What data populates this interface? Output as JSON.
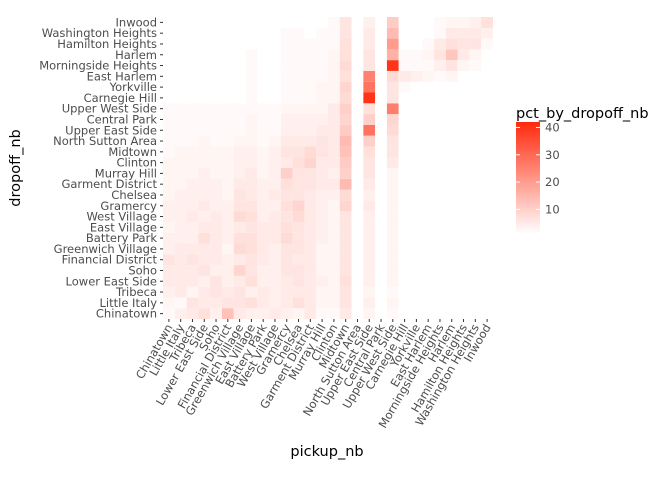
{
  "chart_data": {
    "type": "heatmap",
    "xlabel": "pickup_nb",
    "ylabel": "dropoff_nb",
    "x_categories": [
      "Chinatown",
      "Little Italy",
      "Tribeca",
      "Lower East Side",
      "Soho",
      "Financial District",
      "Greenwich Village",
      "East Village",
      "Battery Park",
      "West Village",
      "Gramercy",
      "Chelsea",
      "Garment District",
      "Murray Hill",
      "Clinton",
      "Midtown",
      "North Sutton Area",
      "Upper East Side",
      "Central Park",
      "Upper West Side",
      "Carnegie Hill",
      "Yorkville",
      "East Harlem",
      "Morningside Heights",
      "Harlem",
      "Hamilton Heights",
      "Washington Heights",
      "Inwood"
    ],
    "y_categories": [
      "Chinatown",
      "Little Italy",
      "Tribeca",
      "Lower East Side",
      "Soho",
      "Financial District",
      "Greenwich Village",
      "Battery Park",
      "East Village",
      "West Village",
      "Gramercy",
      "Chelsea",
      "Garment District",
      "Murray Hill",
      "Clinton",
      "Midtown",
      "North Sutton Area",
      "Upper East Side",
      "Central Park",
      "Upper West Side",
      "Carnegie Hill",
      "Yorkville",
      "East Harlem",
      "Morningside Heights",
      "Harlem",
      "Hamilton Heights",
      "Washington Heights",
      "Inwood"
    ],
    "values": [
      [
        2,
        4,
        5,
        7,
        4,
        13,
        5,
        4,
        4,
        5,
        4,
        3,
        5,
        2,
        2,
        5,
        1,
        3,
        1,
        2,
        1,
        1,
        1,
        1,
        1,
        1,
        1,
        1
      ],
      [
        3,
        2,
        6,
        5,
        5,
        6,
        6,
        7,
        5,
        4,
        5,
        7,
        5,
        3,
        3,
        6,
        1,
        4,
        1,
        3,
        1,
        1,
        1,
        1,
        1,
        1,
        1,
        1
      ],
      [
        4,
        5,
        3,
        5,
        6,
        5,
        6,
        4,
        5,
        4,
        5,
        5,
        5,
        3,
        3,
        6,
        1,
        3,
        1,
        2,
        1,
        1,
        1,
        1,
        1,
        1,
        1,
        1
      ],
      [
        5,
        5,
        5,
        4,
        6,
        4,
        5,
        7,
        4,
        4,
        5,
        6,
        5,
        4,
        3,
        7,
        1,
        4,
        1,
        3,
        1,
        1,
        1,
        1,
        1,
        1,
        1,
        1
      ],
      [
        5,
        5,
        5,
        6,
        4,
        4,
        9,
        6,
        4,
        4,
        6,
        6,
        5,
        3,
        3,
        6,
        1,
        4,
        1,
        3,
        1,
        1,
        1,
        1,
        1,
        1,
        1,
        1
      ],
      [
        6,
        5,
        6,
        5,
        5,
        4,
        5,
        6,
        5,
        4,
        6,
        5,
        5,
        3,
        3,
        6,
        1,
        4,
        1,
        3,
        1,
        1,
        1,
        1,
        1,
        1,
        1,
        1
      ],
      [
        4,
        5,
        5,
        5,
        5,
        3,
        8,
        7,
        5,
        4,
        6,
        6,
        5,
        3,
        3,
        6,
        1,
        4,
        1,
        3,
        1,
        1,
        1,
        1,
        1,
        1,
        1,
        1
      ],
      [
        4,
        4,
        4,
        7,
        5,
        4,
        7,
        7,
        5,
        5,
        8,
        6,
        5,
        4,
        3,
        6,
        1,
        4,
        1,
        3,
        1,
        1,
        1,
        1,
        1,
        1,
        1,
        1
      ],
      [
        3,
        4,
        4,
        5,
        5,
        4,
        5,
        6,
        5,
        5,
        7,
        6,
        5,
        4,
        3,
        6,
        1,
        4,
        1,
        3,
        1,
        1,
        1,
        1,
        1,
        1,
        1,
        1
      ],
      [
        4,
        4,
        5,
        4,
        5,
        4,
        8,
        7,
        4,
        5,
        6,
        8,
        5,
        4,
        3,
        6,
        1,
        4,
        1,
        3,
        1,
        1,
        1,
        1,
        1,
        1,
        1,
        1
      ],
      [
        4,
        4,
        4,
        5,
        4,
        4,
        6,
        6,
        4,
        4,
        7,
        9,
        5,
        4,
        3,
        9,
        1,
        5,
        1,
        3,
        1,
        1,
        1,
        1,
        1,
        1,
        1,
        1
      ],
      [
        3,
        4,
        4,
        4,
        4,
        3,
        6,
        5,
        4,
        5,
        6,
        6,
        5,
        4,
        4,
        8,
        1,
        4,
        1,
        3,
        1,
        1,
        1,
        1,
        1,
        1,
        1,
        1
      ],
      [
        3,
        3,
        4,
        4,
        4,
        3,
        5,
        5,
        4,
        4,
        7,
        6,
        6,
        5,
        5,
        14,
        1,
        5,
        1,
        3,
        1,
        1,
        1,
        1,
        1,
        1,
        1,
        1
      ],
      [
        3,
        3,
        3,
        4,
        3,
        3,
        4,
        5,
        3,
        4,
        10,
        6,
        6,
        5,
        4,
        10,
        1,
        6,
        1,
        3,
        1,
        1,
        1,
        1,
        1,
        1,
        1,
        1
      ],
      [
        3,
        3,
        3,
        3,
        3,
        3,
        4,
        4,
        3,
        4,
        5,
        7,
        9,
        5,
        5,
        11,
        1,
        6,
        1,
        5,
        1,
        1,
        1,
        1,
        1,
        1,
        1,
        1
      ],
      [
        2,
        3,
        3,
        3,
        3,
        3,
        4,
        4,
        3,
        4,
        6,
        6,
        8,
        6,
        5,
        13,
        1,
        7,
        1,
        6,
        1,
        1,
        1,
        1,
        1,
        1,
        1,
        1
      ],
      [
        2,
        2,
        2,
        3,
        2,
        2,
        3,
        3,
        2,
        3,
        5,
        5,
        5,
        6,
        5,
        14,
        1,
        10,
        1,
        6,
        1,
        1,
        1,
        1,
        1,
        1,
        1,
        1
      ],
      [
        2,
        2,
        2,
        2,
        2,
        2,
        2,
        3,
        2,
        2,
        4,
        4,
        4,
        5,
        5,
        11,
        1,
        28,
        1,
        8,
        1,
        1,
        1,
        1,
        1,
        1,
        1,
        1
      ],
      [
        2,
        2,
        2,
        2,
        2,
        2,
        2,
        3,
        2,
        2,
        4,
        4,
        4,
        4,
        5,
        9,
        1,
        10,
        1,
        9,
        1,
        1,
        1,
        1,
        1,
        1,
        1,
        1
      ],
      [
        2,
        2,
        2,
        2,
        2,
        2,
        2,
        2,
        2,
        2,
        3,
        3,
        3,
        3,
        5,
        10,
        1,
        7,
        1,
        26,
        1,
        1,
        1,
        1,
        1,
        1,
        1,
        1
      ],
      [
        1,
        1,
        1,
        1,
        1,
        1,
        1,
        2,
        1,
        1,
        2,
        2,
        2,
        3,
        3,
        8,
        1,
        40,
        1,
        6,
        1,
        1,
        1,
        1,
        1,
        1,
        1,
        1
      ],
      [
        1,
        1,
        1,
        1,
        1,
        1,
        1,
        2,
        1,
        1,
        2,
        2,
        2,
        3,
        3,
        9,
        1,
        28,
        1,
        6,
        2,
        1,
        1,
        1,
        1,
        1,
        1,
        1
      ],
      [
        1,
        1,
        1,
        1,
        1,
        1,
        1,
        2,
        1,
        1,
        2,
        2,
        2,
        2,
        3,
        7,
        1,
        25,
        1,
        8,
        5,
        4,
        3,
        2,
        3,
        1,
        1,
        1
      ],
      [
        1,
        1,
        1,
        1,
        1,
        1,
        1,
        2,
        1,
        1,
        2,
        2,
        2,
        2,
        3,
        8,
        1,
        6,
        1,
        40,
        2,
        2,
        2,
        4,
        6,
        3,
        2,
        1
      ],
      [
        1,
        1,
        1,
        1,
        1,
        1,
        1,
        2,
        1,
        1,
        2,
        2,
        2,
        2,
        3,
        7,
        1,
        6,
        1,
        16,
        2,
        2,
        3,
        6,
        12,
        5,
        3,
        1
      ],
      [
        1,
        1,
        1,
        1,
        1,
        1,
        1,
        1,
        1,
        1,
        2,
        2,
        2,
        2,
        2,
        7,
        1,
        5,
        1,
        20,
        1,
        1,
        2,
        5,
        7,
        6,
        6,
        2
      ],
      [
        1,
        1,
        1,
        1,
        1,
        1,
        1,
        1,
        1,
        1,
        2,
        2,
        1,
        2,
        2,
        6,
        1,
        5,
        1,
        14,
        1,
        1,
        1,
        2,
        5,
        5,
        5,
        4
      ],
      [
        1,
        1,
        1,
        1,
        1,
        1,
        1,
        1,
        1,
        1,
        1,
        1,
        1,
        1,
        2,
        6,
        1,
        4,
        1,
        11,
        1,
        1,
        1,
        2,
        3,
        3,
        4,
        7
      ]
    ],
    "legend": {
      "title": "pct_by_dropoff_nb",
      "ticks": [
        10,
        20,
        30,
        40
      ],
      "range": [
        1,
        42
      ],
      "color_low": "#ffffff",
      "color_high": "#ff2a0c",
      "position": "right"
    },
    "grid": true,
    "panel_background": "#ffffff",
    "grid_color": "#ebebeb"
  }
}
